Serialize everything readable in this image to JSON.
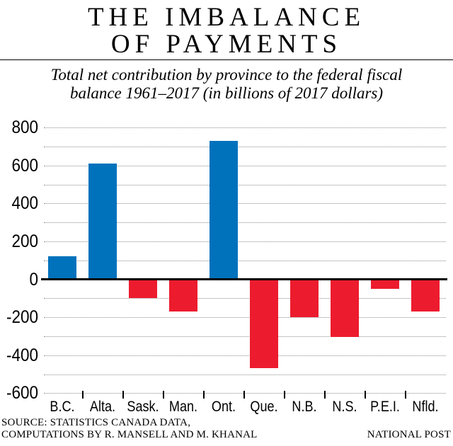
{
  "header": {
    "title_line1": "THE IMBALANCE",
    "title_line2": "OF PAYMENTS",
    "subtitle_line1": "Total net contribution by province to the federal fiscal",
    "subtitle_line2": "balance 1961–2017 (in billions of 2017 dollars)"
  },
  "chart_data": {
    "type": "bar",
    "title": "THE IMBALANCE OF PAYMENTS",
    "subtitle": "Total net contribution by province to the federal fiscal balance 1961–2017 (in billions of 2017 dollars)",
    "categories": [
      "B.C.",
      "Alta.",
      "Sask.",
      "Man.",
      "Ont.",
      "Que.",
      "N.B.",
      "N.S.",
      "P.E.I.",
      "Nfld."
    ],
    "values": [
      120,
      610,
      -100,
      -170,
      730,
      -470,
      -200,
      -305,
      -50,
      -170
    ],
    "xlabel": "",
    "ylabel": "",
    "ylim": [
      -600,
      800
    ],
    "ytick_interval": 200,
    "gridline_interval": 100,
    "grid": "horizontal-dotted",
    "legend": "none",
    "positive_color": "#0072BC",
    "negative_color": "#ED1B2E"
  },
  "footer": {
    "source_line1": "SOURCE: STATISTICS CANADA DATA,",
    "source_line2": "COMPUTATIONS BY R. MANSELL AND M. KHANAL",
    "credit": "NATIONAL POST"
  }
}
